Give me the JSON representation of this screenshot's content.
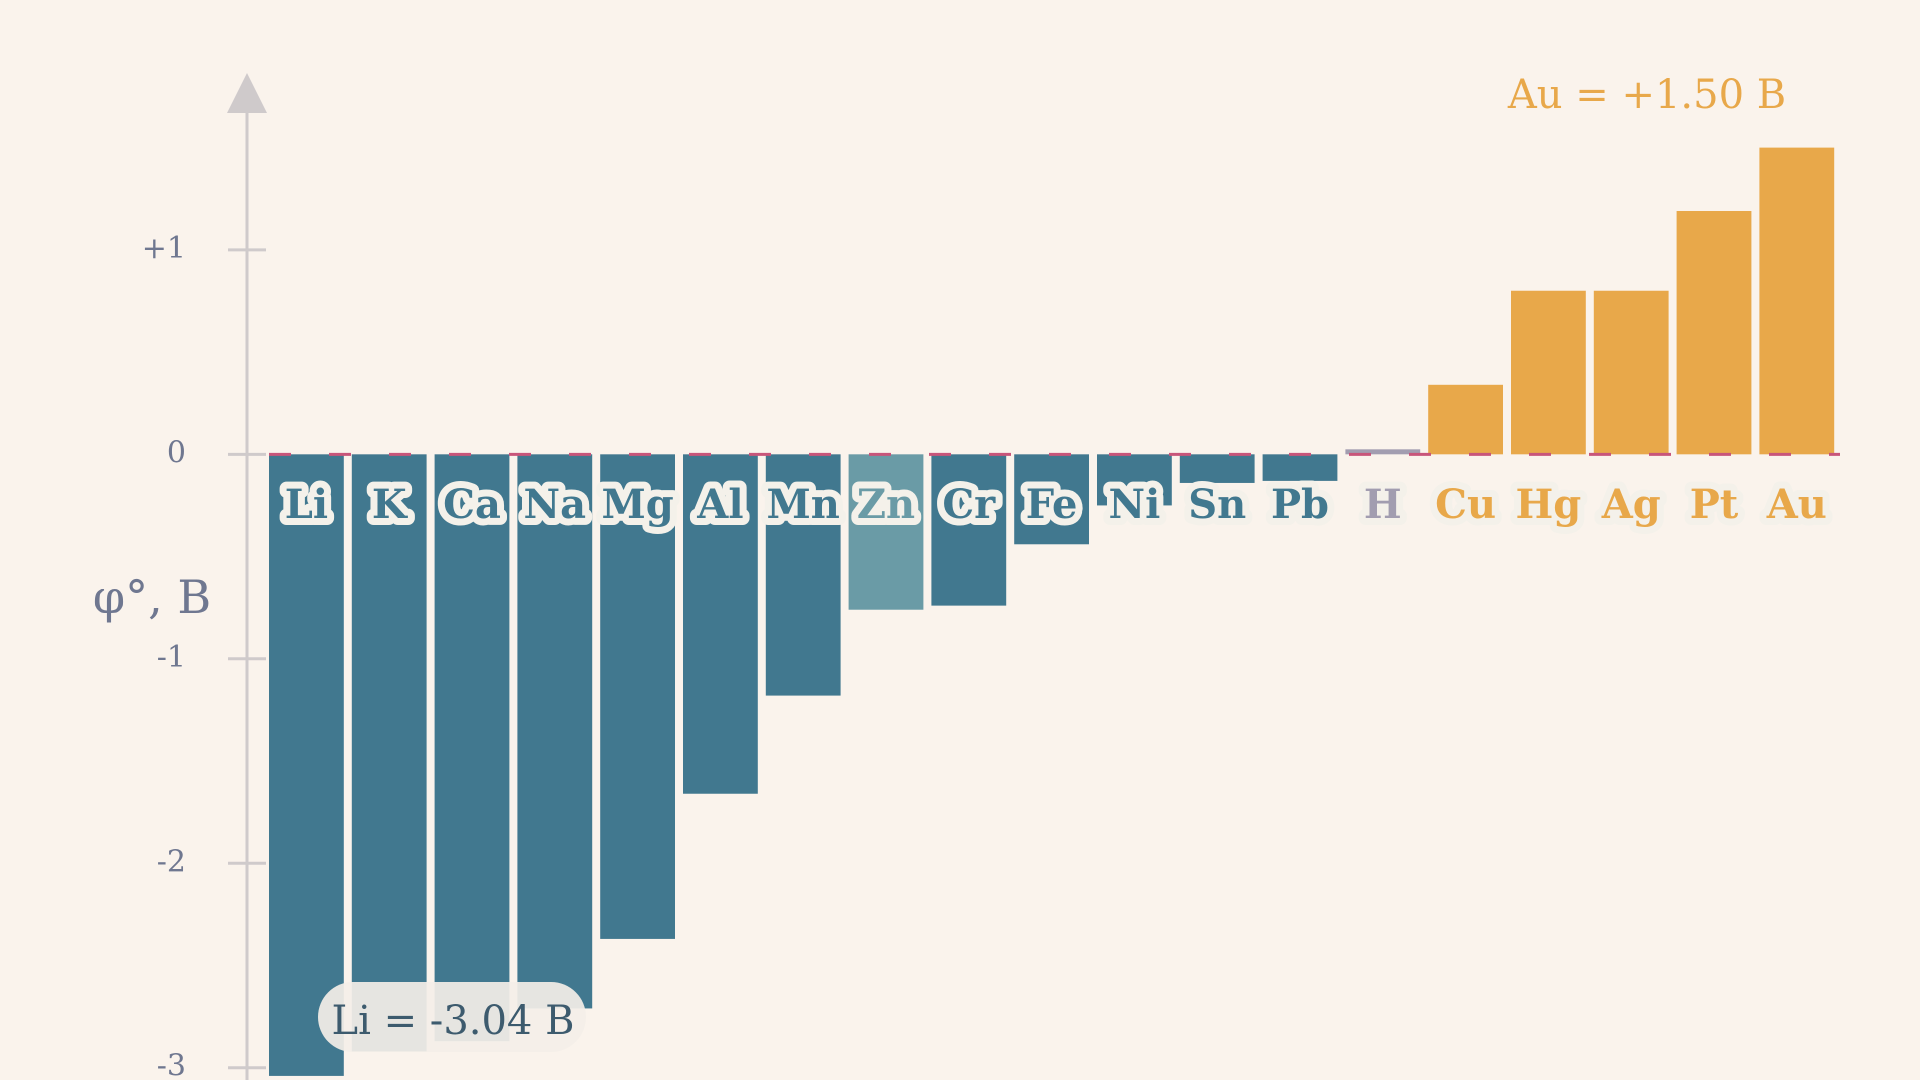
{
  "chart_data": {
    "type": "bar",
    "y_label": "φ°, B",
    "categories": [
      "Li",
      "K",
      "Ca",
      "Na",
      "Mg",
      "Al",
      "Mn",
      "Zn",
      "Cr",
      "Fe",
      "Ni",
      "Sn",
      "Pb",
      "H",
      "Cu",
      "Hg",
      "Ag",
      "Pt",
      "Au"
    ],
    "values": [
      -3.04,
      -2.92,
      -2.87,
      -2.71,
      -2.37,
      -1.66,
      -1.18,
      -0.76,
      -0.74,
      -0.44,
      -0.25,
      -0.14,
      -0.13,
      0,
      0.34,
      0.8,
      0.8,
      1.19,
      1.5
    ],
    "colors": [
      "#41788f",
      "#41788f",
      "#41788f",
      "#41788f",
      "#41788f",
      "#41788f",
      "#41788f",
      "#6a9ba6",
      "#41788f",
      "#41788f",
      "#41788f",
      "#41788f",
      "#41788f",
      "#a29db0",
      "#e8a84a",
      "#e8a84a",
      "#e8a84a",
      "#e8a84a",
      "#e8a84a"
    ],
    "ylim": [
      -3.06,
      1.86
    ],
    "yticks": [
      {
        "value": 1,
        "label": "+1"
      },
      0,
      -1,
      -2,
      -3
    ],
    "annotations": [
      "Au = +1.50 B",
      "Li = -3.04 B"
    ]
  }
}
